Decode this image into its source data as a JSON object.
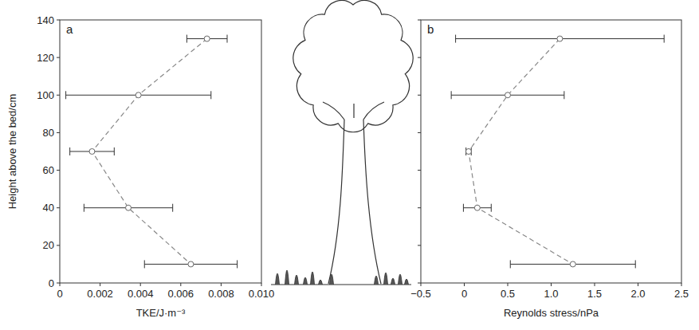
{
  "chart_data": [
    {
      "type": "line",
      "panel_label": "a",
      "x_label": "TKE/J·m⁻³",
      "y_label": "Height above the bed/cm",
      "xlim": [
        0,
        0.01
      ],
      "xticks": [
        0,
        0.002,
        0.004,
        0.006,
        0.008,
        {
          "value": 0.01,
          "label": "0.010"
        }
      ],
      "ylim": [
        0,
        140
      ],
      "yticks": [
        0,
        20,
        40,
        60,
        80,
        100,
        120,
        140
      ],
      "marker": "circle",
      "line_style": "dashed",
      "series": [
        {
          "color": "#666666",
          "x": [
            0.0073,
            0.0039,
            0.0016,
            0.0034,
            0.0065
          ],
          "values": [
            130,
            100,
            70,
            40,
            10
          ],
          "x_errors": [
            0.001,
            0.0036,
            0.0011,
            0.0022,
            0.0023
          ]
        }
      ]
    },
    {
      "type": "line",
      "panel_label": "b",
      "x_label": "Reynolds stress/nPa",
      "xlim": [
        -0.5,
        2.5
      ],
      "xticks": [
        {
          "value": -0.5,
          "label": "−0.5"
        },
        0,
        0.5,
        {
          "value": 1,
          "label": "1.0"
        },
        1.5,
        {
          "value": 2,
          "label": "2.0"
        },
        2.5
      ],
      "ylim": [
        0,
        140
      ],
      "yticks": [
        0,
        20,
        40,
        60,
        80,
        100,
        120,
        140
      ],
      "tick_labels": "x",
      "marker": "circle",
      "line_style": "dashed",
      "series": [
        {
          "color": "#666666",
          "x": [
            1.1,
            0.5,
            0.05,
            0.15,
            1.25
          ],
          "values": [
            130,
            100,
            70,
            40,
            10
          ],
          "x_errors": [
            1.2,
            0.65,
            0.03,
            0.16,
            0.72
          ]
        }
      ]
    }
  ]
}
